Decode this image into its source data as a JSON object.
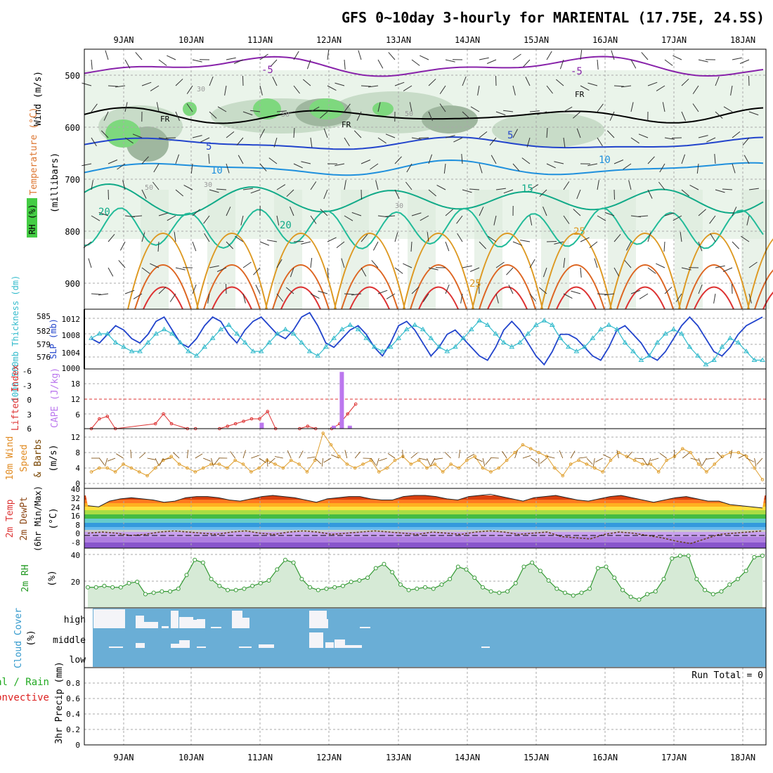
{
  "title": "GFS 0~10day 3-hourly for MARIENTAL (17.75E, 24.5S)",
  "colors": {
    "frame": "#000000",
    "grid": "#a0a0a0",
    "rh_fill_light": "#e6f2e6",
    "rh_fill_mid": "#c6dcc6",
    "rh_fill_dark": "#9ab09a",
    "rh_fill_bright": "#7ed87e",
    "thickness": "#33bbcc",
    "slp": "#2244cc",
    "lifted_index": "#dd3333",
    "cape": "#bb77ee",
    "wind": "#e0a030",
    "rh2m": "#339933",
    "cloud_bg": "#6aaed6",
    "cloud_bar": "#f4f4f8",
    "precip_label_total": "#22aa22",
    "precip_label_conv": "#dd2222"
  },
  "date_labels": [
    "9JAN",
    "10JAN",
    "11JAN",
    "12JAN",
    "13JAN",
    "14JAN",
    "15JAN",
    "16JAN",
    "17JAN",
    "18JAN"
  ],
  "panels": {
    "upper_air": {
      "ylabel_wind": "Wind (m/s)",
      "ylabel_temp": "Temperature (°C)",
      "ylabel_rh": "RH (%)",
      "ylabel_press": "(millibars)",
      "yticks": [
        "500",
        "600",
        "700",
        "800",
        "900"
      ],
      "labels": {
        "freezing": "FR",
        "t_m5": "-5",
        "t_5": "5",
        "t_10": "10",
        "t_15": "15",
        "t_20": "20",
        "t_25": "25",
        "rh_30": "30",
        "rh_50": "50"
      }
    },
    "thickness_slp": {
      "ylabel_thick": "1000-500mb Thickness (dm)",
      "ylabel_slp": "SLP (mb)",
      "left_ticks": [
        "585",
        "582",
        "579",
        "576"
      ],
      "right_ticks": [
        "1012",
        "1008",
        "1004",
        "1000"
      ]
    },
    "li_cape": {
      "ylabel_li": "Lifted Index",
      "ylabel_cape": "CAPE (J/kg)",
      "left_ticks": [
        "-6",
        "-3",
        "0",
        "3",
        "6"
      ],
      "right_ticks": [
        "18",
        "12",
        "6"
      ]
    },
    "wind10m": {
      "ylabel1": "10m Wind",
      "ylabel2": "Speed",
      "ylabel3": "& Barbs",
      "ylabel_units": "(m/s)",
      "ticks": [
        "12",
        "8",
        "4",
        "0"
      ]
    },
    "temp2m": {
      "ylabel1": "2m Temp",
      "ylabel2": "2m DewPt",
      "ylabel3": "(6hr Min/Max)",
      "ylabel_units": "(°C)",
      "ticks": [
        "40",
        "32",
        "24",
        "16",
        "8",
        "0",
        "-8"
      ]
    },
    "rh2m": {
      "ylabel": "2m RH",
      "ylabel_units": "(%)",
      "ticks": [
        "40",
        "20"
      ]
    },
    "cloud": {
      "ylabel": "Cloud Cover",
      "ylabel_units": "(%)",
      "levels": [
        "high",
        "middle",
        "low"
      ]
    },
    "precip": {
      "ylabel_total": "Total / Rain",
      "ylabel_conv": "Convective",
      "ylabel": "3hr Precip (mm)",
      "ticks": [
        "0.8",
        "0.6",
        "0.4",
        "0.2",
        "0"
      ],
      "run_total": "Run Total = 0"
    }
  },
  "chart_data": {
    "type": "line",
    "x_axis_dates": [
      "9JAN",
      "10JAN",
      "11JAN",
      "12JAN",
      "13JAN",
      "14JAN",
      "15JAN",
      "16JAN",
      "17JAN",
      "18JAN"
    ],
    "slp_mb": [
      1007,
      1006,
      1008,
      1010,
      1009,
      1007,
      1006,
      1008,
      1011,
      1012,
      1009,
      1006,
      1005,
      1007,
      1010,
      1012,
      1011,
      1008,
      1006,
      1009,
      1011,
      1012,
      1010,
      1008,
      1007,
      1009,
      1012,
      1013,
      1010,
      1006,
      1005,
      1007,
      1009,
      1010,
      1008,
      1005,
      1003,
      1006,
      1010,
      1011,
      1009,
      1006,
      1003,
      1005,
      1008,
      1009,
      1007,
      1005,
      1003,
      1002,
      1005,
      1009,
      1011,
      1009,
      1006,
      1003,
      1001,
      1004,
      1008,
      1008,
      1007,
      1005,
      1003,
      1002,
      1005,
      1009,
      1010,
      1008,
      1006,
      1003,
      1002,
      1004,
      1007,
      1010,
      1012,
      1010,
      1007,
      1004,
      1003,
      1005,
      1008,
      1010,
      1011,
      1012
    ],
    "thickness_dm": [
      580,
      581,
      581,
      579,
      578,
      577,
      577,
      579,
      581,
      582,
      581,
      579,
      577,
      576,
      578,
      580,
      582,
      583,
      581,
      579,
      577,
      577,
      579,
      581,
      582,
      581,
      579,
      577,
      576,
      578,
      580,
      582,
      583,
      582,
      580,
      578,
      577,
      578,
      580,
      582,
      583,
      582,
      580,
      578,
      577,
      578,
      580,
      582,
      584,
      583,
      581,
      579,
      578,
      579,
      581,
      583,
      584,
      583,
      580,
      578,
      577,
      578,
      580,
      582,
      583,
      582,
      579,
      577,
      575,
      576,
      579,
      581,
      582,
      581,
      578,
      576,
      574,
      575,
      578,
      580,
      579,
      577,
      575,
      575
    ],
    "lifted_index_points": [
      [
        0,
        6
      ],
      [
        1,
        4
      ],
      [
        2,
        3.5
      ],
      [
        3,
        6
      ],
      [
        8,
        5
      ],
      [
        9,
        3
      ],
      [
        10,
        5
      ],
      [
        12,
        6
      ],
      [
        13,
        6
      ],
      [
        16,
        6
      ],
      [
        17,
        5.5
      ],
      [
        18,
        5
      ],
      [
        19,
        4.5
      ],
      [
        20,
        4
      ],
      [
        21,
        4
      ],
      [
        22,
        2.5
      ],
      [
        23,
        6
      ],
      [
        26,
        6
      ],
      [
        27,
        5.5
      ],
      [
        28,
        6
      ],
      [
        30,
        6
      ],
      [
        31,
        5
      ],
      [
        32,
        3
      ],
      [
        33,
        1
      ]
    ],
    "cape_bars": [
      [
        21,
        2
      ],
      [
        30,
        1
      ],
      [
        31,
        19
      ],
      [
        32,
        1
      ]
    ],
    "wind10m_speed": [
      3,
      4,
      4,
      3,
      5,
      4,
      3,
      2,
      4,
      6,
      7,
      5,
      4,
      3,
      4,
      5,
      5,
      4,
      6,
      5,
      3,
      4,
      6,
      5,
      4,
      6,
      5,
      3,
      6,
      13,
      10,
      7,
      5,
      4,
      5,
      6,
      3,
      4,
      6,
      7,
      5,
      6,
      4,
      5,
      3,
      5,
      4,
      6,
      7,
      4,
      3,
      4,
      6,
      8,
      10,
      9,
      8,
      7,
      4,
      2,
      5,
      6,
      5,
      4,
      3,
      6,
      8,
      7,
      6,
      5,
      5,
      3,
      6,
      7,
      9,
      8,
      5,
      3,
      5,
      7,
      8,
      8,
      7,
      4,
      1
    ],
    "temp2m_max": [
      26,
      25,
      30,
      32,
      33,
      32,
      31,
      29,
      30,
      33,
      34,
      34,
      33,
      31,
      30,
      32,
      34,
      35,
      34,
      33,
      31,
      29,
      32,
      33,
      34,
      34,
      32,
      31,
      31,
      34,
      35,
      35,
      34,
      32,
      31,
      34,
      35,
      36,
      34,
      32,
      30,
      33,
      34,
      35,
      33,
      31,
      30,
      32,
      34,
      35,
      33,
      31,
      29,
      31,
      33,
      34,
      32,
      30,
      30,
      27,
      26,
      25,
      24
    ],
    "dewpt2m": [
      2,
      3,
      2,
      0,
      1,
      3,
      4,
      3,
      2,
      1,
      3,
      4,
      2,
      1,
      3,
      4,
      3,
      1,
      2,
      3,
      4,
      3,
      2,
      1,
      3,
      2,
      1,
      3,
      4,
      3,
      1,
      2,
      3,
      -1,
      -2,
      -3,
      1,
      3,
      2,
      0,
      -2,
      -5,
      -7,
      -3,
      1,
      2,
      3,
      4
    ],
    "rh2m_pct": [
      15,
      15,
      16,
      15,
      15,
      18,
      19,
      10,
      11,
      12,
      12,
      14,
      24,
      35,
      33,
      21,
      16,
      13,
      13,
      14,
      16,
      18,
      20,
      28,
      35,
      33,
      21,
      15,
      13,
      14,
      15,
      16,
      19,
      20,
      22,
      29,
      32,
      26,
      17,
      13,
      14,
      15,
      14,
      17,
      21,
      30,
      28,
      22,
      15,
      12,
      11,
      12,
      18,
      30,
      33,
      27,
      20,
      14,
      11,
      9,
      11,
      14,
      29,
      30,
      22,
      13,
      8,
      6,
      10,
      12,
      21,
      36,
      38,
      38,
      21,
      13,
      10,
      12,
      17,
      21,
      27,
      37,
      38
    ]
  }
}
